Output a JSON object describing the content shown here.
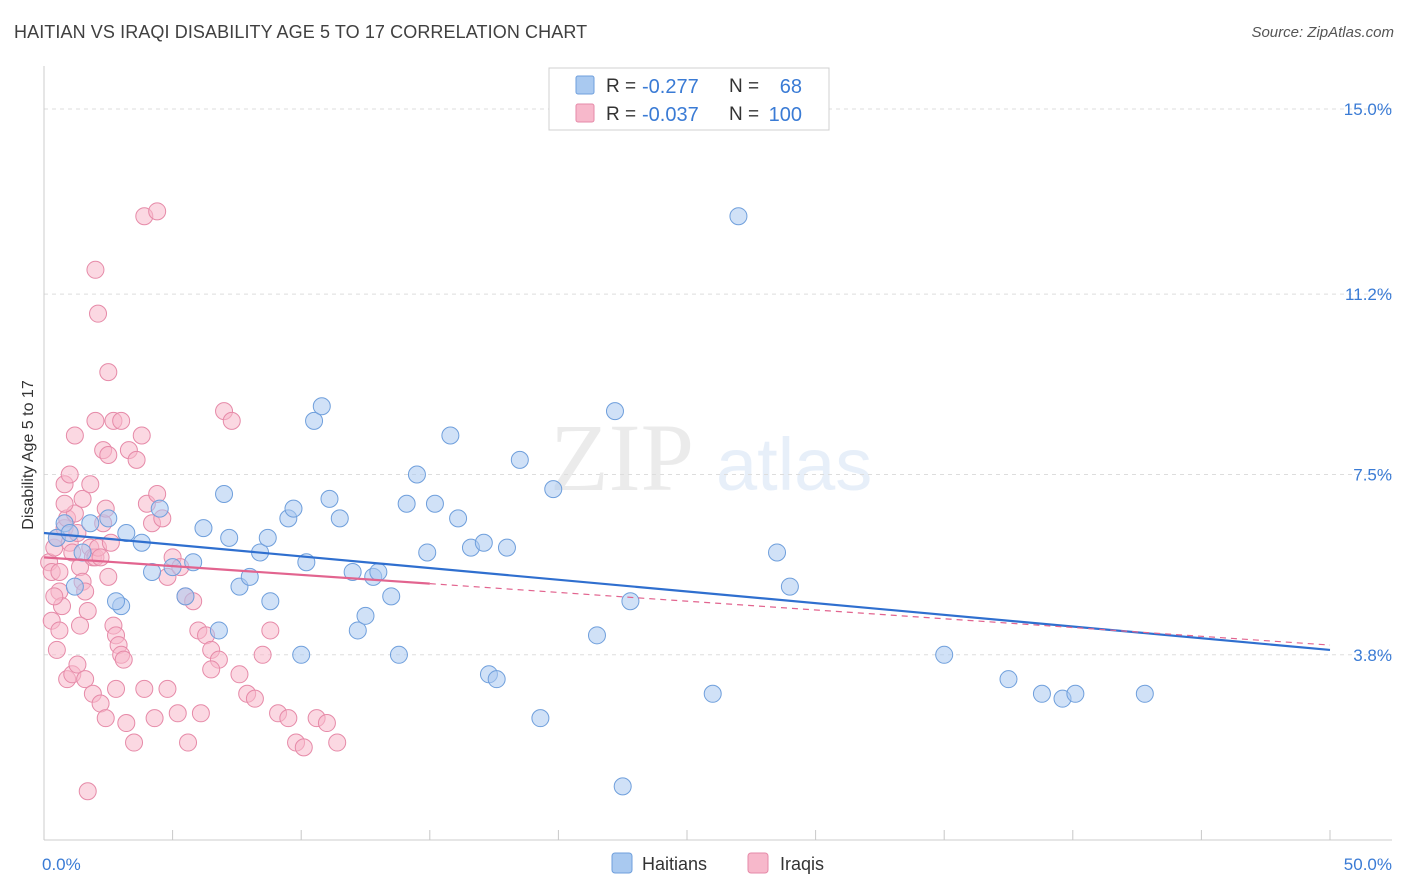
{
  "header": {
    "title": "HAITIAN VS IRAQI DISABILITY AGE 5 TO 17 CORRELATION CHART",
    "source": "Source: ZipAtlas.com"
  },
  "watermark": {
    "zip": "ZIP",
    "atlas": "atlas"
  },
  "colors": {
    "blue_fill": "#a9c9f0",
    "blue_stroke": "#6f9fdc",
    "blue_line": "#2f6fcf",
    "pink_fill": "#f7b8cb",
    "pink_stroke": "#e68aa8",
    "pink_line": "#e2648f",
    "axis_label": "#3a7bd5",
    "grid": "#dddddd"
  },
  "chart_data": {
    "type": "scatter",
    "title": "HAITIAN VS IRAQI DISABILITY AGE 5 TO 17 CORRELATION CHART",
    "xlabel": "",
    "ylabel": "Disability Age 5 to 17",
    "xlim": [
      0,
      50
    ],
    "ylim": [
      0,
      15.8
    ],
    "x_tick_labels": [
      "0.0%",
      "50.0%"
    ],
    "y_ticks": [
      3.8,
      7.5,
      11.2,
      15.0
    ],
    "y_tick_labels": [
      "3.8%",
      "7.5%",
      "11.2%",
      "15.0%"
    ],
    "legend": {
      "entries": [
        {
          "series": "Haitians",
          "r_label": "R =",
          "r_value": "-0.277",
          "n_label": "N =",
          "n_value": "68"
        },
        {
          "series": "Iraqis",
          "r_label": "R =",
          "r_value": "-0.037",
          "n_label": "N =",
          "n_value": "100"
        }
      ]
    },
    "series": [
      {
        "name": "Haitians",
        "color": "#a9c9f0",
        "trend": {
          "x": [
            0,
            50
          ],
          "y": [
            6.3,
            3.9
          ],
          "solid_to": 50
        },
        "points": [
          [
            0.5,
            6.2
          ],
          [
            0.8,
            6.5
          ],
          [
            1.0,
            6.3
          ],
          [
            1.2,
            5.2
          ],
          [
            1.8,
            6.5
          ],
          [
            2.5,
            6.6
          ],
          [
            3.2,
            6.3
          ],
          [
            3.8,
            6.1
          ],
          [
            4.2,
            5.5
          ],
          [
            4.5,
            6.8
          ],
          [
            5.0,
            5.6
          ],
          [
            5.5,
            5.0
          ],
          [
            5.8,
            5.7
          ],
          [
            6.2,
            6.4
          ],
          [
            6.8,
            4.3
          ],
          [
            7.0,
            7.1
          ],
          [
            7.2,
            6.2
          ],
          [
            7.6,
            5.2
          ],
          [
            8.0,
            5.4
          ],
          [
            8.4,
            5.9
          ],
          [
            8.7,
            6.2
          ],
          [
            8.8,
            4.9
          ],
          [
            9.5,
            6.6
          ],
          [
            9.7,
            6.8
          ],
          [
            10.0,
            3.8
          ],
          [
            10.2,
            5.7
          ],
          [
            10.5,
            8.6
          ],
          [
            10.8,
            8.9
          ],
          [
            11.1,
            7.0
          ],
          [
            11.5,
            6.6
          ],
          [
            12.0,
            5.5
          ],
          [
            12.2,
            4.3
          ],
          [
            12.5,
            4.6
          ],
          [
            12.8,
            5.4
          ],
          [
            13.0,
            5.5
          ],
          [
            13.5,
            5.0
          ],
          [
            13.8,
            3.8
          ],
          [
            14.1,
            6.9
          ],
          [
            14.5,
            7.5
          ],
          [
            14.9,
            5.9
          ],
          [
            15.2,
            6.9
          ],
          [
            15.8,
            8.3
          ],
          [
            16.1,
            6.6
          ],
          [
            16.6,
            6.0
          ],
          [
            17.1,
            6.1
          ],
          [
            17.3,
            3.4
          ],
          [
            17.6,
            3.3
          ],
          [
            18.0,
            6.0
          ],
          [
            18.5,
            7.8
          ],
          [
            19.3,
            2.5
          ],
          [
            19.8,
            7.2
          ],
          [
            21.5,
            4.2
          ],
          [
            22.2,
            8.8
          ],
          [
            22.5,
            1.1
          ],
          [
            22.8,
            4.9
          ],
          [
            26.0,
            3.0
          ],
          [
            27.0,
            12.8
          ],
          [
            28.5,
            5.9
          ],
          [
            29.0,
            5.2
          ],
          [
            35.0,
            3.8
          ],
          [
            37.5,
            3.3
          ],
          [
            38.8,
            3.0
          ],
          [
            39.6,
            2.9
          ],
          [
            40.1,
            3.0
          ],
          [
            42.8,
            3.0
          ],
          [
            3.0,
            4.8
          ],
          [
            2.8,
            4.9
          ],
          [
            1.5,
            5.9
          ]
        ]
      },
      {
        "name": "Iraqis",
        "color": "#f7b8cb",
        "trend": {
          "x": [
            0,
            50
          ],
          "y": [
            5.8,
            4.0
          ],
          "solid_to": 15.0
        },
        "points": [
          [
            0.2,
            5.7
          ],
          [
            0.3,
            5.5
          ],
          [
            0.4,
            6.0
          ],
          [
            0.5,
            6.2
          ],
          [
            0.6,
            5.1
          ],
          [
            0.7,
            4.8
          ],
          [
            0.8,
            6.4
          ],
          [
            0.9,
            6.6
          ],
          [
            1.0,
            6.1
          ],
          [
            1.1,
            5.9
          ],
          [
            1.2,
            6.7
          ],
          [
            1.3,
            6.3
          ],
          [
            1.4,
            5.6
          ],
          [
            1.5,
            5.3
          ],
          [
            1.6,
            5.1
          ],
          [
            1.7,
            4.7
          ],
          [
            1.8,
            6.0
          ],
          [
            1.9,
            5.8
          ],
          [
            2.0,
            5.8
          ],
          [
            2.1,
            6.0
          ],
          [
            2.2,
            5.8
          ],
          [
            2.3,
            6.5
          ],
          [
            2.4,
            6.8
          ],
          [
            2.5,
            5.4
          ],
          [
            2.6,
            6.1
          ],
          [
            2.7,
            4.4
          ],
          [
            2.8,
            4.2
          ],
          [
            2.9,
            4.0
          ],
          [
            3.0,
            3.8
          ],
          [
            3.1,
            3.7
          ],
          [
            0.3,
            4.5
          ],
          [
            0.5,
            3.9
          ],
          [
            0.6,
            4.3
          ],
          [
            0.9,
            3.3
          ],
          [
            1.1,
            3.4
          ],
          [
            1.3,
            3.6
          ],
          [
            1.6,
            3.3
          ],
          [
            1.9,
            3.0
          ],
          [
            2.2,
            2.8
          ],
          [
            2.4,
            2.5
          ],
          [
            0.8,
            7.3
          ],
          [
            1.0,
            7.5
          ],
          [
            1.2,
            8.3
          ],
          [
            1.5,
            7.0
          ],
          [
            1.8,
            7.3
          ],
          [
            2.0,
            8.6
          ],
          [
            2.3,
            8.0
          ],
          [
            2.5,
            7.9
          ],
          [
            2.7,
            8.6
          ],
          [
            3.0,
            8.6
          ],
          [
            3.3,
            8.0
          ],
          [
            3.6,
            7.8
          ],
          [
            3.8,
            8.3
          ],
          [
            4.0,
            6.9
          ],
          [
            4.2,
            6.5
          ],
          [
            4.4,
            7.1
          ],
          [
            4.6,
            6.6
          ],
          [
            4.8,
            5.4
          ],
          [
            5.0,
            5.8
          ],
          [
            5.3,
            5.6
          ],
          [
            5.5,
            5.0
          ],
          [
            5.8,
            4.9
          ],
          [
            6.0,
            4.3
          ],
          [
            6.3,
            4.2
          ],
          [
            6.5,
            3.9
          ],
          [
            6.8,
            3.7
          ],
          [
            7.0,
            8.8
          ],
          [
            7.3,
            8.6
          ],
          [
            7.6,
            3.4
          ],
          [
            7.9,
            3.0
          ],
          [
            8.2,
            2.9
          ],
          [
            8.5,
            3.8
          ],
          [
            8.8,
            4.3
          ],
          [
            9.1,
            2.6
          ],
          [
            9.5,
            2.5
          ],
          [
            9.8,
            2.0
          ],
          [
            10.1,
            1.9
          ],
          [
            10.6,
            2.5
          ],
          [
            11.0,
            2.4
          ],
          [
            11.4,
            2.0
          ],
          [
            2.0,
            11.7
          ],
          [
            2.1,
            10.8
          ],
          [
            2.5,
            9.6
          ],
          [
            3.9,
            12.8
          ],
          [
            4.4,
            12.9
          ],
          [
            0.4,
            5.0
          ],
          [
            0.6,
            5.5
          ],
          [
            0.8,
            6.9
          ],
          [
            1.4,
            4.4
          ],
          [
            1.7,
            1.0
          ],
          [
            2.8,
            3.1
          ],
          [
            3.2,
            2.4
          ],
          [
            3.5,
            2.0
          ],
          [
            3.9,
            3.1
          ],
          [
            4.3,
            2.5
          ],
          [
            4.8,
            3.1
          ],
          [
            5.2,
            2.6
          ],
          [
            5.6,
            2.0
          ],
          [
            6.1,
            2.6
          ],
          [
            6.5,
            3.5
          ]
        ]
      }
    ]
  },
  "bottom_legend": {
    "items": [
      "Haitians",
      "Iraqis"
    ]
  }
}
